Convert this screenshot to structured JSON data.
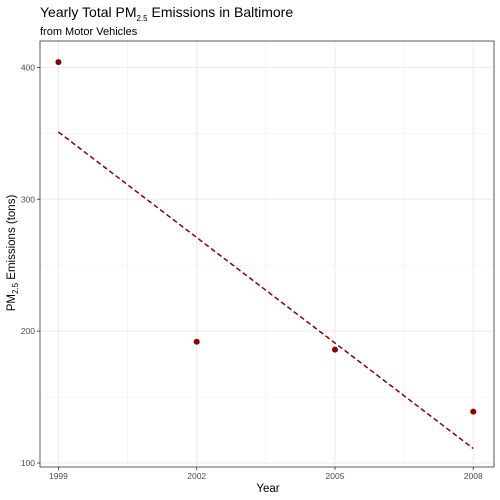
{
  "chart_data": {
    "type": "scatter",
    "title": {
      "pre": "Yearly Total PM",
      "sub": "2.5",
      "post": " Emissions in Baltimore"
    },
    "subtitle": "from Motor Vehicles",
    "xlabel": "Year",
    "ylabel": {
      "pre": "PM",
      "sub": "2.5",
      "post": " Emissions (tons)"
    },
    "x_ticks": [
      1999,
      2002,
      2005,
      2008
    ],
    "y_ticks": [
      100,
      200,
      300,
      400
    ],
    "xlim": [
      1998.6,
      2008.45
    ],
    "ylim": [
      97,
      420
    ],
    "points": [
      {
        "x": 1999,
        "y": 404
      },
      {
        "x": 2002,
        "y": 192
      },
      {
        "x": 2005,
        "y": 186
      },
      {
        "x": 2008,
        "y": 139
      }
    ],
    "trend_line": {
      "x": [
        1999,
        2008
      ],
      "y": [
        351,
        111
      ],
      "style": "dashed"
    },
    "grid": true,
    "theme": "bw",
    "colors": {
      "point": "#8b0000",
      "trend": "#8b0000",
      "grid": "#ebebeb",
      "panel_border": "#333333"
    }
  }
}
